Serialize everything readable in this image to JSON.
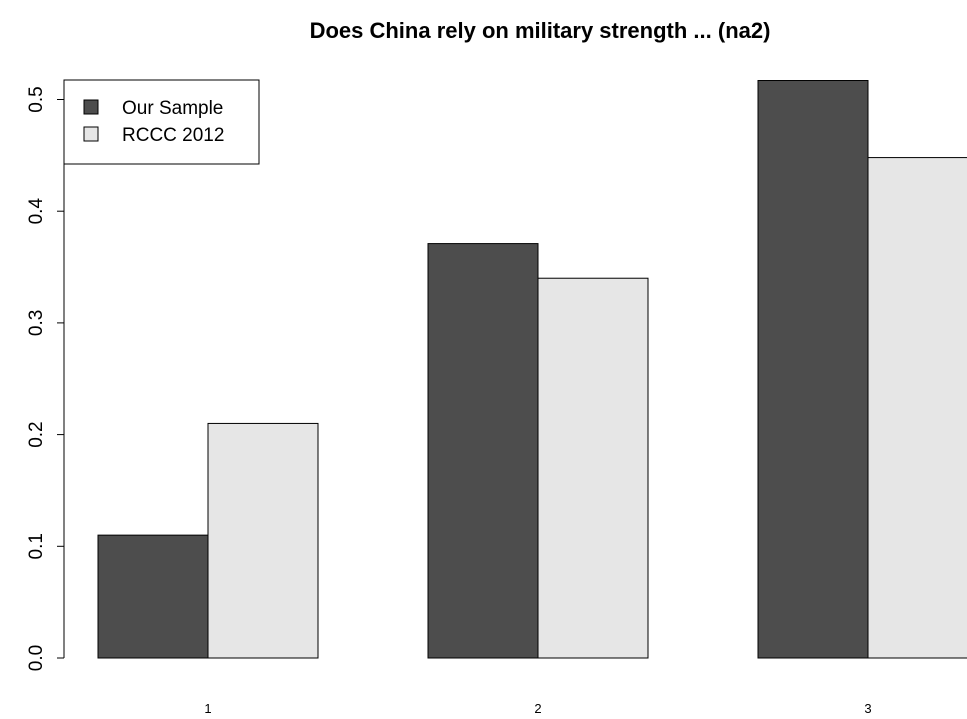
{
  "chart_data": {
    "type": "bar",
    "title": "Does China rely on military strength ... (na2)",
    "xlabel": "",
    "ylabel": "",
    "categories": [
      "1",
      "2",
      "3"
    ],
    "series": [
      {
        "name": "Our Sample",
        "color": "#4d4d4d",
        "values": [
          0.11,
          0.371,
          0.517
        ]
      },
      {
        "name": "RCCC 2012",
        "color": "#e6e6e6",
        "values": [
          0.21,
          0.34,
          0.448
        ]
      }
    ],
    "ylim": [
      0,
      0.5
    ],
    "yticks": [
      "0.0",
      "0.1",
      "0.2",
      "0.3",
      "0.4",
      "0.5"
    ],
    "legend_position": "top-left",
    "grid": false
  }
}
